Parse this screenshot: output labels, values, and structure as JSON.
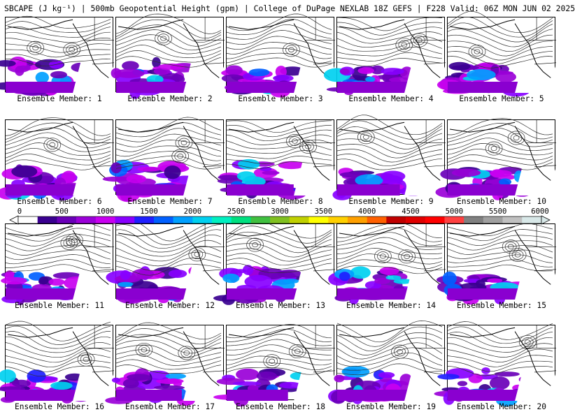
{
  "header": {
    "title": "SBCAPE (J kg⁻¹) | 500mb Geopotential Height (gpm) | College of DuPage NEXLAB 18Z GEFS | F228 Valid: 06Z MON JUN 02 2025"
  },
  "colorbar": {
    "ticks": [
      "0",
      "500",
      "1000",
      "1500",
      "2000",
      "2500",
      "3000",
      "3500",
      "4000",
      "4500",
      "5000",
      "5500",
      "6000"
    ],
    "colors": [
      "#ffffff",
      "#3a0090",
      "#6a00b8",
      "#9a00d8",
      "#c800f0",
      "#8800ff",
      "#2020ff",
      "#0060ff",
      "#00a0ff",
      "#00d0f0",
      "#00f0c0",
      "#00e080",
      "#40c040",
      "#80c020",
      "#c0d000",
      "#ffff00",
      "#ffd000",
      "#ffa000",
      "#ff6000",
      "#c00000",
      "#e00000",
      "#ff0000",
      "#ff4040",
      "#808080",
      "#a0a0a0",
      "#c0c0c0",
      "#d8e8e8"
    ]
  },
  "members": [
    {
      "label": "Ensemble Member: 1"
    },
    {
      "label": "Ensemble Member: 2"
    },
    {
      "label": "Ensemble Member: 3"
    },
    {
      "label": "Ensemble Member: 4"
    },
    {
      "label": "Ensemble Member: 5"
    },
    {
      "label": "Ensemble Member: 6"
    },
    {
      "label": "Ensemble Member: 7"
    },
    {
      "label": "Ensemble Member: 8"
    },
    {
      "label": "Ensemble Member: 9"
    },
    {
      "label": "Ensemble Member: 10"
    },
    {
      "label": "Ensemble Member: 11"
    },
    {
      "label": "Ensemble Member: 12"
    },
    {
      "label": "Ensemble Member: 13"
    },
    {
      "label": "Ensemble Member: 14"
    },
    {
      "label": "Ensemble Member: 15"
    },
    {
      "label": "Ensemble Member: 16"
    },
    {
      "label": "Ensemble Member: 17"
    },
    {
      "label": "Ensemble Member: 18"
    },
    {
      "label": "Ensemble Member: 19"
    },
    {
      "label": "Ensemble Member: 20"
    }
  ]
}
